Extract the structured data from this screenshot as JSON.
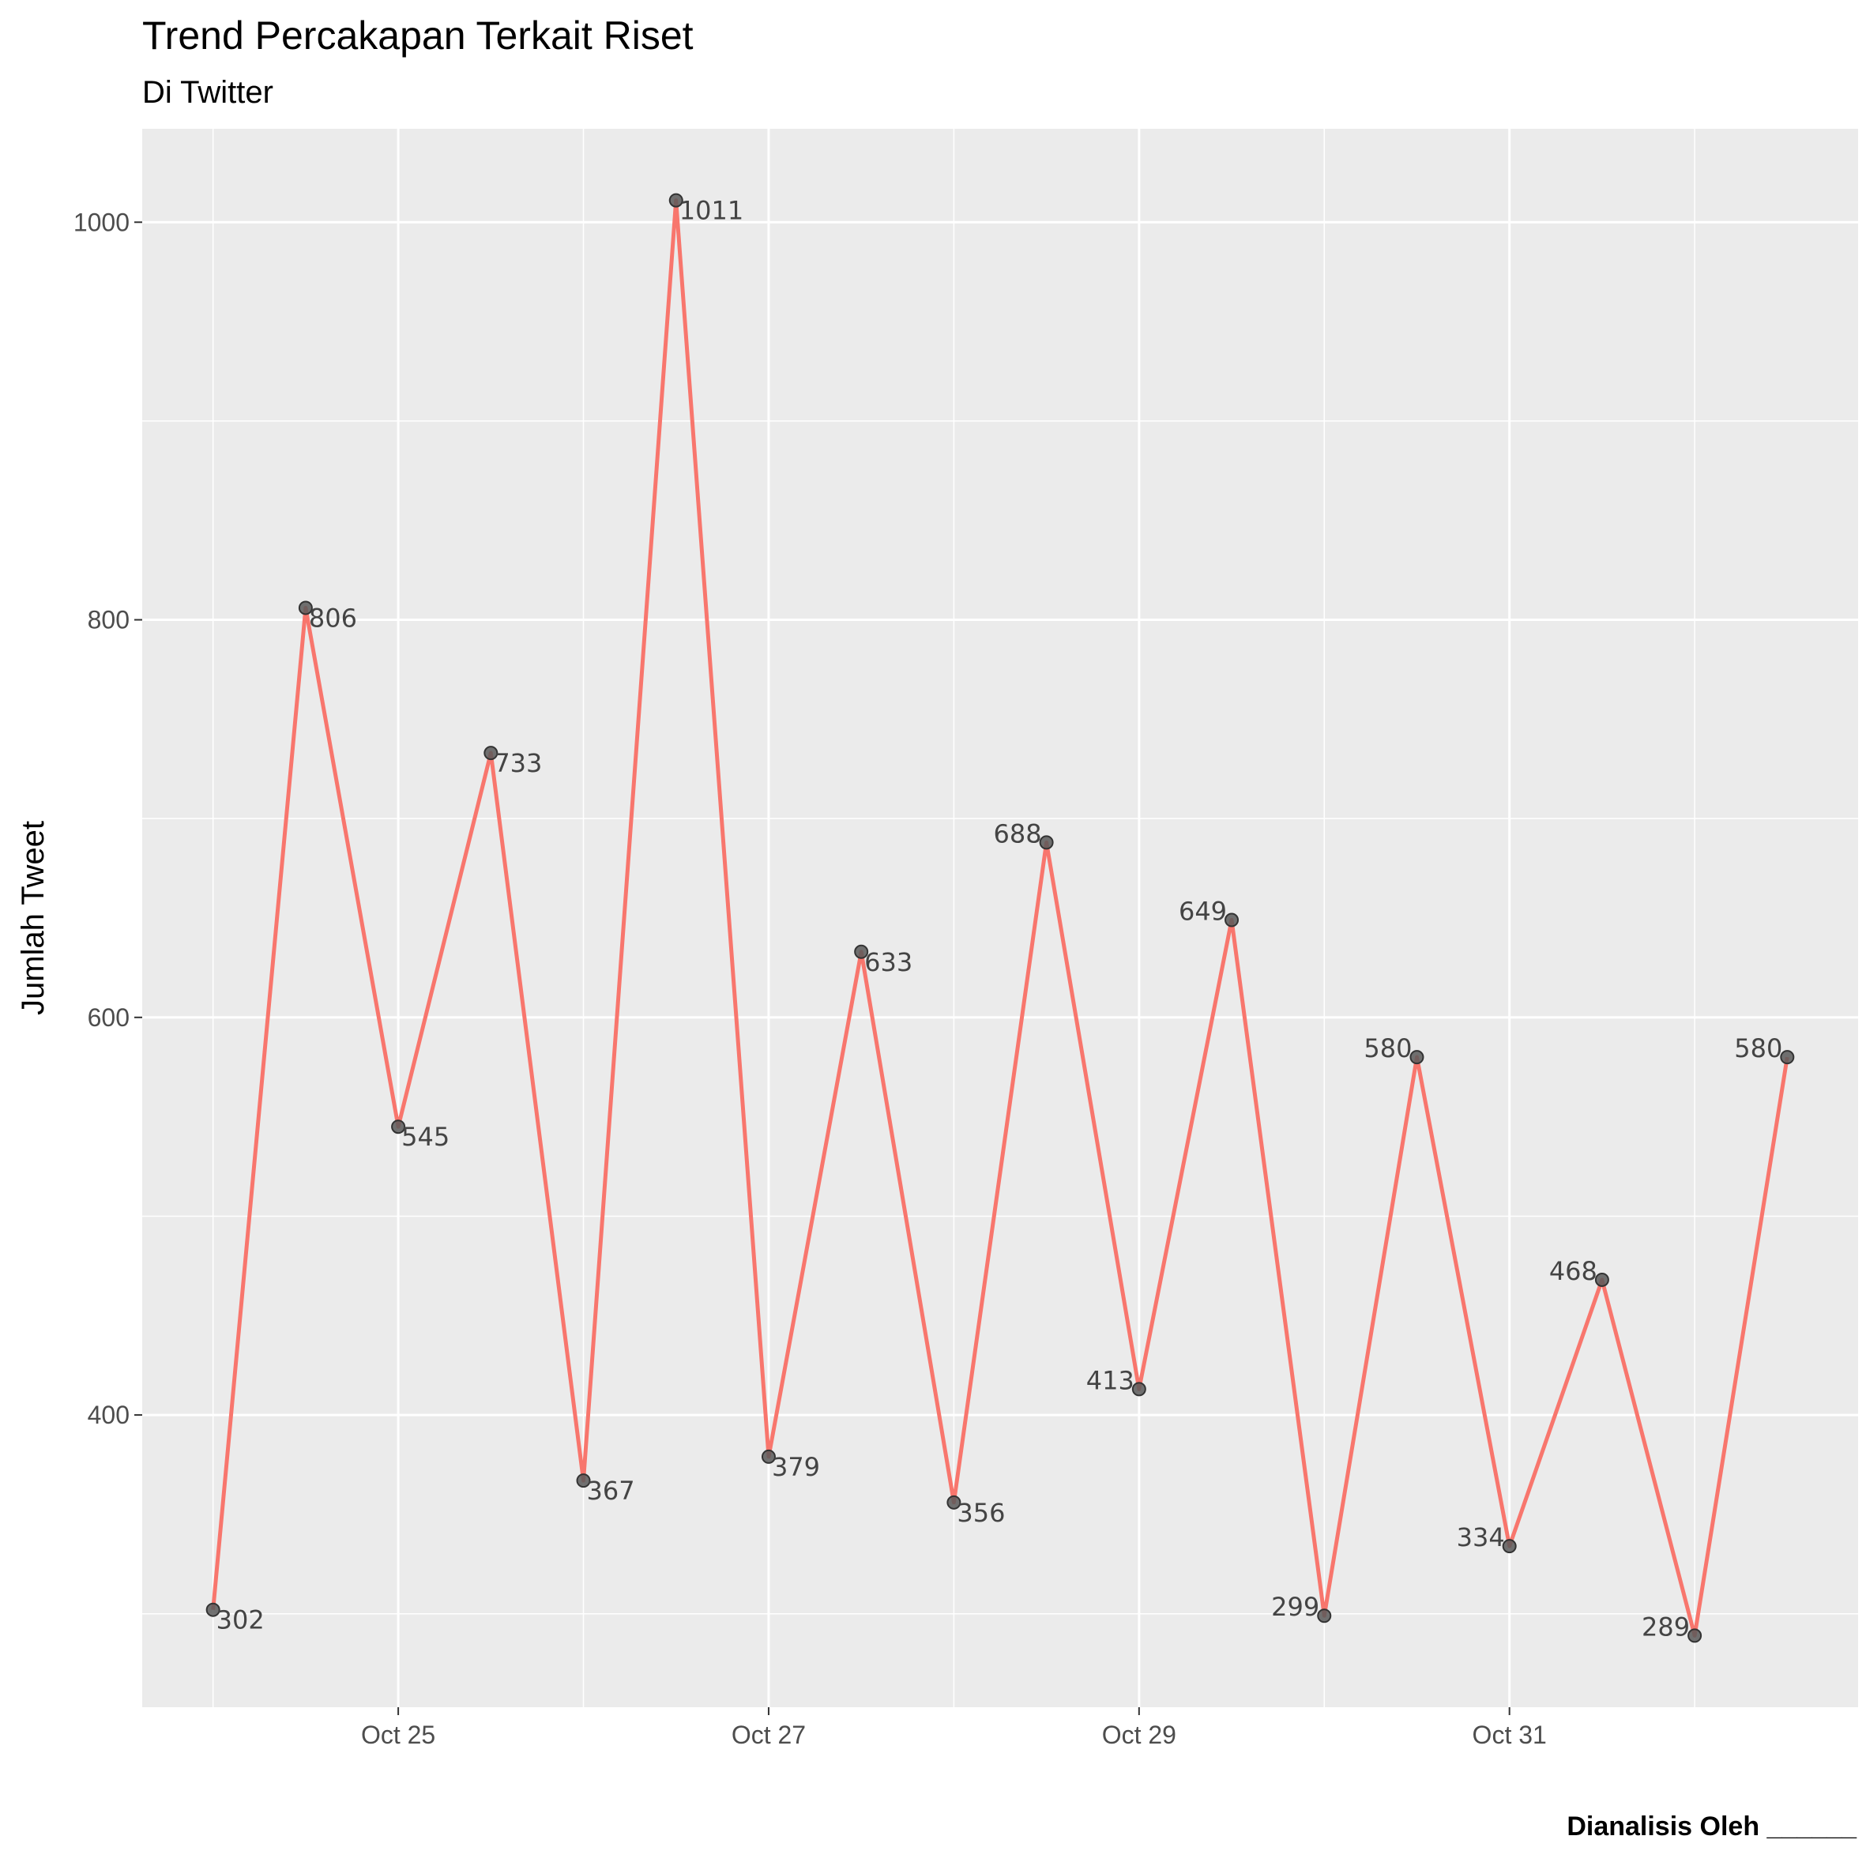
{
  "chart_data": {
    "type": "line",
    "title": "Trend Percakapan Terkait Riset",
    "subtitle": "Di Twitter",
    "xlabel": "",
    "ylabel": "Jumlah Tweet",
    "caption": "Dianalisis Oleh ______",
    "x": [
      "2020-10-24 00:00",
      "2020-10-24 12:00",
      "2020-10-25 00:00",
      "2020-10-25 12:00",
      "2020-10-26 00:00",
      "2020-10-26 12:00",
      "2020-10-27 00:00",
      "2020-10-27 12:00",
      "2020-10-28 00:00",
      "2020-10-28 12:00",
      "2020-10-29 00:00",
      "2020-10-29 12:00",
      "2020-10-30 00:00",
      "2020-10-30 12:00",
      "2020-10-31 00:00",
      "2020-10-31 12:00",
      "2020-11-01 00:00",
      "2020-11-01 12:00"
    ],
    "values": [
      302,
      806,
      545,
      733,
      367,
      1011,
      379,
      633,
      356,
      688,
      413,
      649,
      299,
      580,
      334,
      468,
      289,
      580
    ],
    "labels": [
      "302",
      "806",
      "545",
      "733",
      "367",
      "1011",
      "379",
      "633",
      "356",
      "688",
      "413",
      "649",
      "299",
      "580",
      "334",
      "468",
      "289",
      "580"
    ],
    "x_ticks": [
      {
        "x": "2020-10-25 00:00",
        "label": "Oct 25"
      },
      {
        "x": "2020-10-27 00:00",
        "label": "Oct 27"
      },
      {
        "x": "2020-10-29 00:00",
        "label": "Oct 29"
      },
      {
        "x": "2020-10-31 00:00",
        "label": "Oct 31"
      }
    ],
    "y_ticks": [
      400,
      600,
      800,
      1000
    ],
    "ylim": [
      253,
      1047
    ],
    "grid": true,
    "line_color": "#f8766d",
    "point_color": "#595959",
    "panel_color": "#ebebeb"
  }
}
